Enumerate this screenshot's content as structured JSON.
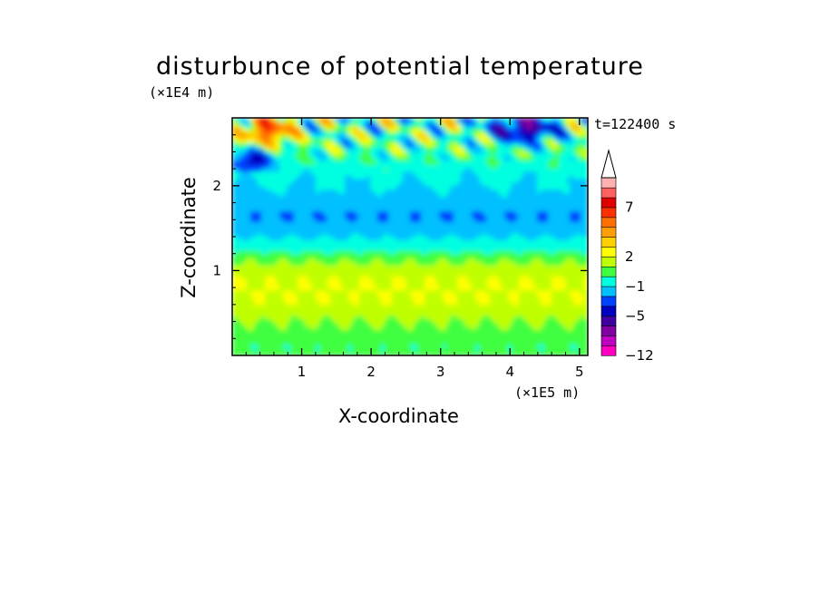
{
  "chart_data": {
    "type": "heatmap",
    "title": "disturbunce of potential temperature",
    "xlabel": "X-coordinate",
    "ylabel": "Z-coordinate",
    "x_unit": "(×1E5 m)",
    "y_unit": "(×1E4 m)",
    "annotation": "t=122400 s",
    "xlim": [
      0,
      5.12
    ],
    "ylim": [
      0,
      2.8
    ],
    "x_ticks": [
      "1",
      "2",
      "3",
      "4",
      "5"
    ],
    "y_ticks": [
      "1",
      "2"
    ],
    "colorbar": {
      "tick_labels": [
        "7",
        "2",
        "−1",
        "−5",
        "−12"
      ],
      "colors": [
        "#ff00c0",
        "#c000c0",
        "#8000a0",
        "#4000a0",
        "#0000c0",
        "#0040ff",
        "#00c0ff",
        "#00ffe0",
        "#40ff40",
        "#c0ff00",
        "#ffff00",
        "#ffd000",
        "#ffa000",
        "#ff7000",
        "#ff3000",
        "#e00000",
        "#ff6060",
        "#ffb0b0"
      ],
      "extend": "max"
    },
    "grid": false,
    "legend_placement": "right"
  }
}
